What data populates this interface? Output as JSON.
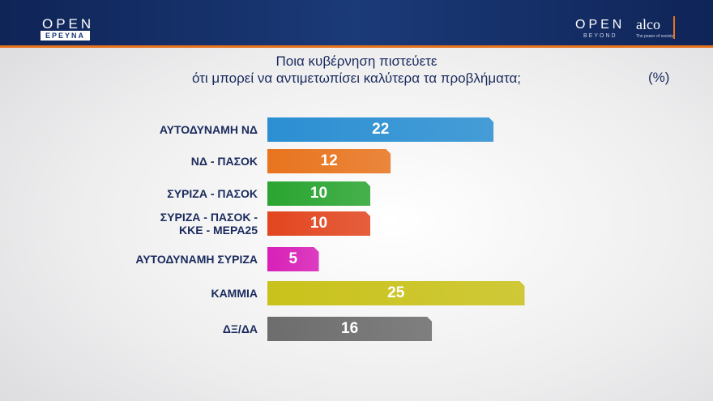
{
  "header": {
    "left_logo": "OPEN",
    "left_logo_sub": "ΕΡΕΥΝΑ",
    "right_logo": "OPEN",
    "right_logo_sub": "BEYOND",
    "partner_logo": "alco",
    "partner_tagline": "The power of society"
  },
  "chart_data": {
    "type": "bar",
    "orientation": "horizontal",
    "title": [
      "Ποια κυβέρνηση πιστεύετε",
      "ότι μπορεί να αντιμετωπίσει καλύτερα τα προβλήματα;"
    ],
    "unit_label": "(%)",
    "categories": [
      "ΑΥΤΟΔΥΝΑΜΗ ΝΔ",
      "ΝΔ - ΠΑΣΟΚ",
      "ΣΥΡΙΖΑ - ΠΑΣΟΚ",
      "ΣΥΡΙΖΑ - ΠΑΣΟΚ -\nΚΚΕ - ΜΕΡΑ25",
      "ΑΥΤΟΔΥΝΑΜΗ ΣΥΡΙΖΑ",
      "ΚΑΜΜΙΑ",
      "ΔΞ/ΔΑ"
    ],
    "values": [
      22,
      12,
      10,
      10,
      5,
      25,
      16
    ],
    "colors": [
      "#2b8fd2",
      "#e8741e",
      "#2aa531",
      "#e2461f",
      "#d820b8",
      "#c9c21b",
      "#6d6d6d"
    ]
  }
}
